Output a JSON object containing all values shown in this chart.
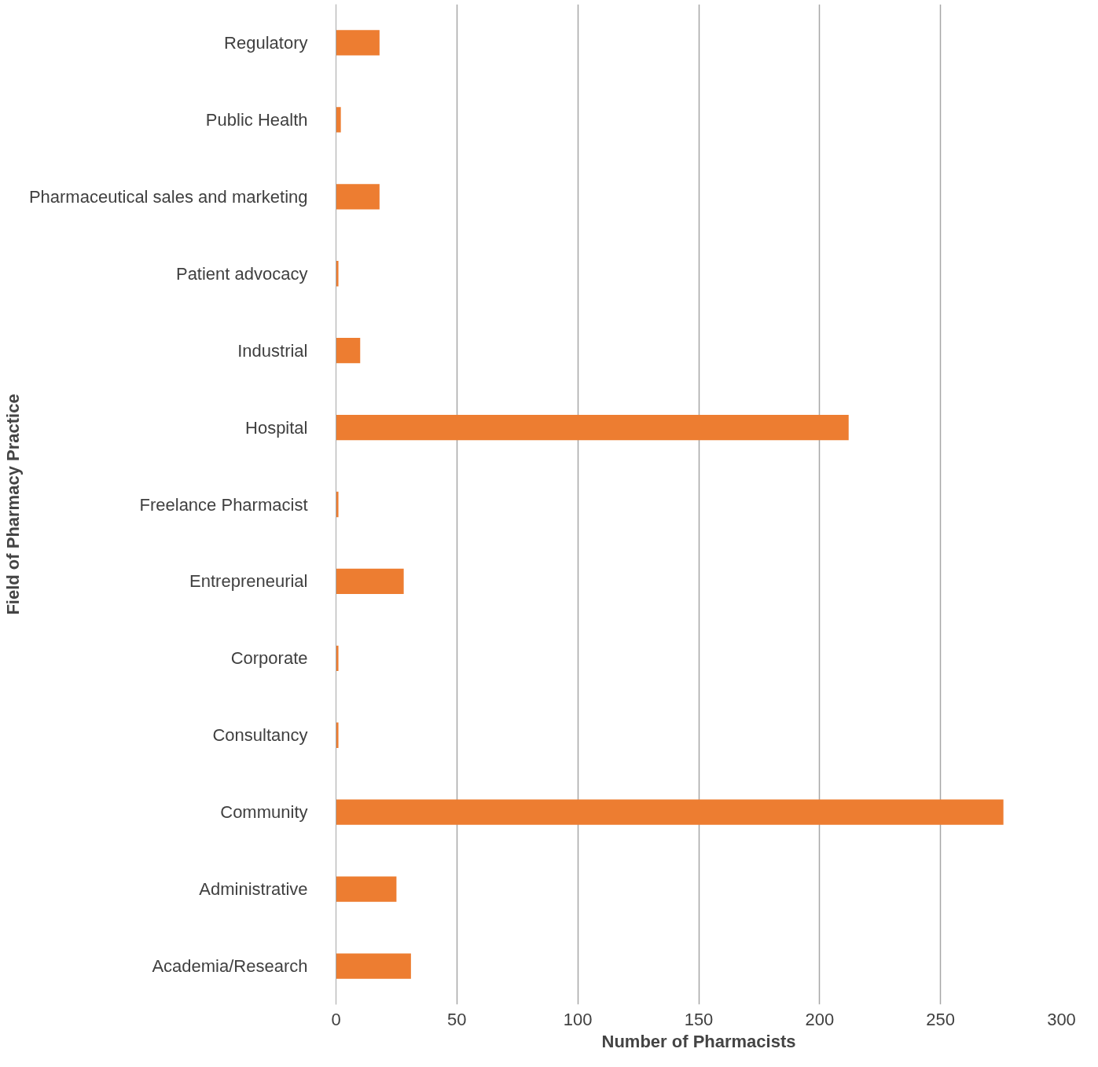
{
  "chart_data": {
    "type": "bar",
    "orientation": "horizontal",
    "xlabel": "Number of Pharmacists",
    "ylabel": "Field of Pharmacy Practice",
    "categories": [
      "Regulatory",
      "Public Health",
      "Pharmaceutical sales and marketing",
      "Patient advocacy",
      "Industrial",
      "Hospital",
      "Freelance Pharmacist",
      "Entrepreneurial",
      "Corporate",
      "Consultancy",
      "Community",
      "Administrative",
      "Academia/Research"
    ],
    "values": [
      18,
      2,
      18,
      1,
      10,
      212,
      1,
      28,
      1,
      1,
      276,
      25,
      31
    ],
    "color": "#ed7d31",
    "xlim": [
      0,
      300
    ],
    "xticks": [
      0,
      50,
      100,
      150,
      200,
      250,
      300
    ],
    "grid": "x"
  }
}
